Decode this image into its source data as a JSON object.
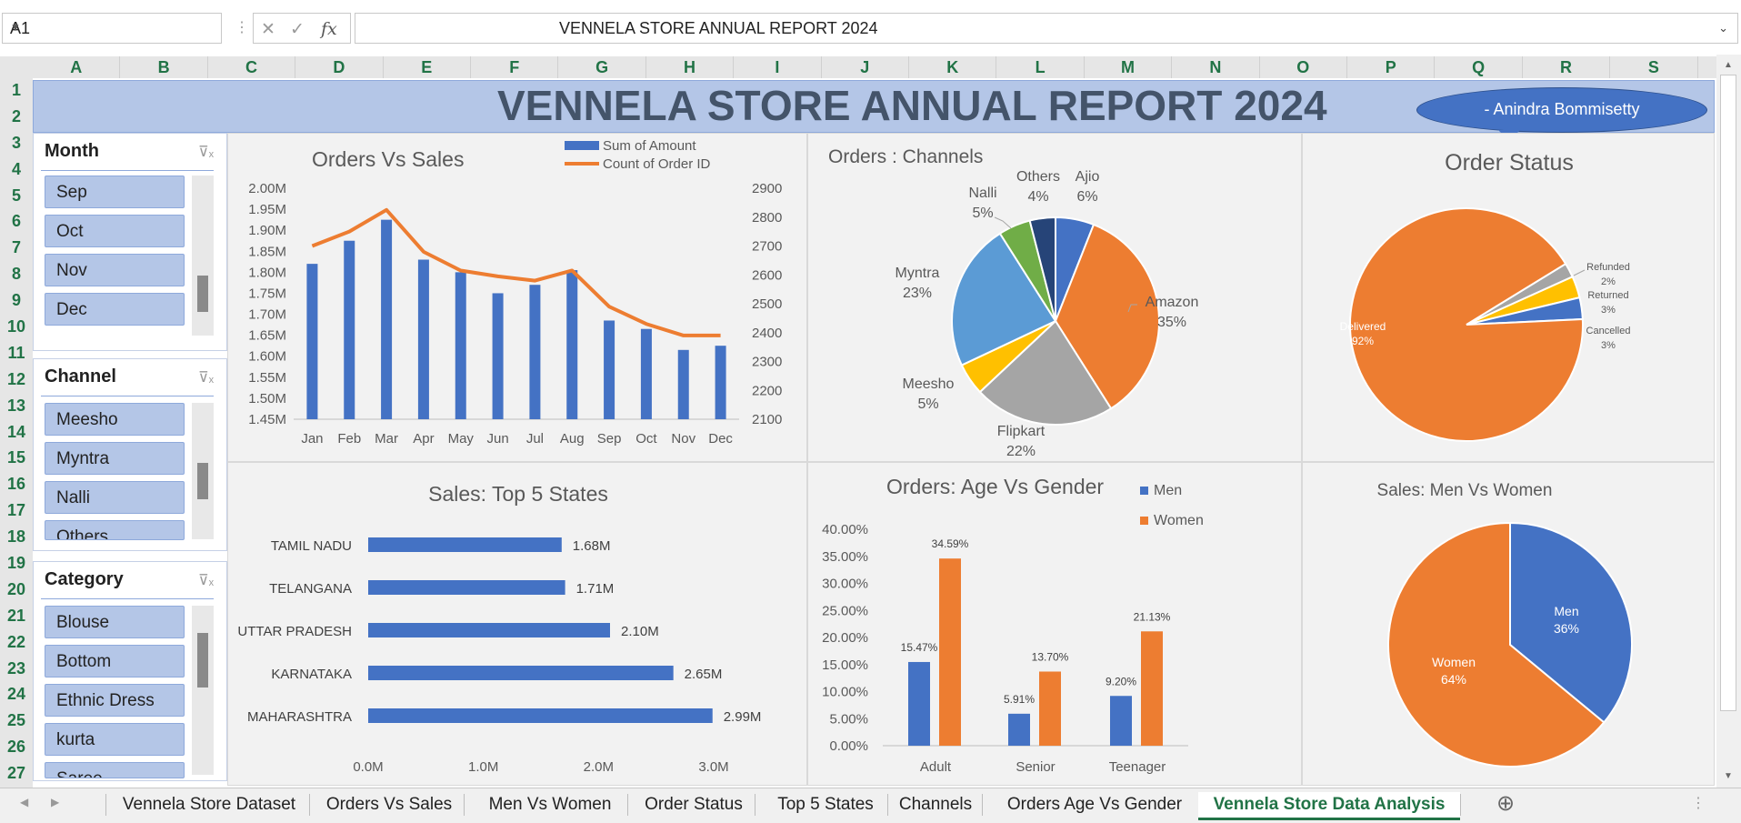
{
  "formula_bar": {
    "name_box": "A1",
    "formula": "VENNELA STORE ANNUAL REPORT 2024",
    "fx": "fx"
  },
  "columns": [
    "A",
    "B",
    "C",
    "D",
    "E",
    "F",
    "G",
    "H",
    "I",
    "J",
    "K",
    "L",
    "M",
    "N",
    "O",
    "P",
    "Q",
    "R",
    "S"
  ],
  "rows": [
    "1",
    "2",
    "3",
    "4",
    "5",
    "6",
    "7",
    "8",
    "9",
    "10",
    "11",
    "12",
    "13",
    "14",
    "15",
    "16",
    "17",
    "18",
    "19",
    "20",
    "21",
    "22",
    "23",
    "24",
    "25",
    "26",
    "27"
  ],
  "banner": {
    "title": "VENNELA STORE ANNUAL REPORT 2024",
    "author": "- Anindra Bommisetty"
  },
  "slicers": {
    "month": {
      "title": "Month",
      "items": [
        "Sep",
        "Oct",
        "Nov",
        "Dec"
      ]
    },
    "channel": {
      "title": "Channel",
      "items": [
        "Meesho",
        "Myntra",
        "Nalli",
        "Others"
      ]
    },
    "category": {
      "title": "Category",
      "items": [
        "Blouse",
        "Bottom",
        "Ethnic Dress",
        "kurta",
        "Saree"
      ]
    }
  },
  "tabs": [
    "Vennela Store Dataset",
    "Orders Vs Sales",
    "Men Vs Women",
    "Order Status",
    "Top 5 States",
    "Channels",
    "Orders Age Vs Gender",
    "Vennela Store Data Analysis"
  ],
  "active_tab": "Vennela Store Data Analysis",
  "colors": {
    "blue": "#4472c4",
    "orange": "#ed7d31",
    "gray": "#a5a5a5",
    "yellow": "#ffc000",
    "lightblue": "#5b9bd5",
    "green": "#70ad47",
    "navy": "#264478"
  },
  "chart_data": [
    {
      "type": "bar",
      "title": "Orders Vs Sales",
      "categories": [
        "Jan",
        "Feb",
        "Mar",
        "Apr",
        "May",
        "Jun",
        "Jul",
        "Aug",
        "Sep",
        "Oct",
        "Nov",
        "Dec"
      ],
      "series": [
        {
          "name": "Sum of Amount",
          "type": "bar",
          "axis": "left",
          "values": [
            1.82,
            1.875,
            1.925,
            1.83,
            1.8,
            1.75,
            1.77,
            1.805,
            1.685,
            1.665,
            1.615,
            1.625
          ]
        },
        {
          "name": "Count of Order ID",
          "type": "line",
          "axis": "right",
          "values": [
            2700,
            2750,
            2825,
            2680,
            2615,
            2595,
            2580,
            2615,
            2490,
            2430,
            2390,
            2390
          ]
        }
      ],
      "y_ticks": [
        "2.00M",
        "1.95M",
        "1.90M",
        "1.85M",
        "1.80M",
        "1.75M",
        "1.70M",
        "1.65M",
        "1.60M",
        "1.55M",
        "1.50M",
        "1.45M"
      ],
      "y2_ticks": [
        "2900",
        "2800",
        "2700",
        "2600",
        "2500",
        "2400",
        "2300",
        "2200",
        "2100"
      ],
      "ylim": [
        1.45,
        2.0
      ],
      "y2lim": [
        2100,
        2900
      ],
      "legend": "top-right"
    },
    {
      "type": "pie",
      "title": "Orders : Channels",
      "slices": [
        {
          "label": "Ajio",
          "value": 6,
          "pct": "6%",
          "color": "#4472c4"
        },
        {
          "label": "Amazon",
          "value": 35,
          "pct": "35%",
          "color": "#ed7d31"
        },
        {
          "label": "Flipkart",
          "value": 22,
          "pct": "22%",
          "color": "#a5a5a5"
        },
        {
          "label": "Meesho",
          "value": 5,
          "pct": "5%",
          "color": "#ffc000"
        },
        {
          "label": "Myntra",
          "value": 23,
          "pct": "23%",
          "color": "#5b9bd5"
        },
        {
          "label": "Nalli",
          "value": 5,
          "pct": "5%",
          "color": "#70ad47"
        },
        {
          "label": "Others",
          "value": 4,
          "pct": "4%",
          "color": "#264478"
        }
      ]
    },
    {
      "type": "pie",
      "title": "Order Status",
      "slices": [
        {
          "label": "Refunded",
          "value": 2,
          "pct": "2%",
          "color": "#a5a5a5"
        },
        {
          "label": "Returned",
          "value": 3,
          "pct": "3%",
          "color": "#ffc000"
        },
        {
          "label": "Cancelled",
          "value": 3,
          "pct": "3%",
          "color": "#4472c4"
        },
        {
          "label": "Delivered",
          "value": 92,
          "pct": "92%",
          "color": "#ed7d31"
        }
      ]
    },
    {
      "type": "bar",
      "orientation": "horizontal",
      "title": "Sales: Top 5 States",
      "categories": [
        "TAMIL NADU",
        "TELANGANA",
        "UTTAR PRADESH",
        "KARNATAKA",
        "MAHARASHTRA"
      ],
      "values": [
        1.68,
        1.71,
        2.1,
        2.65,
        2.99
      ],
      "labels": [
        "1.68M",
        "1.71M",
        "2.10M",
        "2.65M",
        "2.99M"
      ],
      "x_ticks": [
        "0.0M",
        "1.0M",
        "2.0M",
        "3.0M"
      ],
      "xlim": [
        0,
        3.0
      ]
    },
    {
      "type": "bar",
      "title": "Orders: Age Vs Gender",
      "categories": [
        "Adult",
        "Senior",
        "Teenager"
      ],
      "series": [
        {
          "name": "Men",
          "values": [
            15.47,
            5.91,
            9.2
          ],
          "labels": [
            "15.47%",
            "5.91%",
            "9.20%"
          ]
        },
        {
          "name": "Women",
          "values": [
            34.59,
            13.7,
            21.13
          ],
          "labels": [
            "34.59%",
            "13.70%",
            "21.13%"
          ]
        }
      ],
      "y_ticks": [
        "40.00%",
        "35.00%",
        "30.00%",
        "25.00%",
        "20.00%",
        "15.00%",
        "10.00%",
        "5.00%",
        "0.00%"
      ],
      "ylim": [
        0,
        40
      ],
      "legend": "top-right"
    },
    {
      "type": "pie",
      "title": "Sales: Men Vs Women",
      "slices": [
        {
          "label": "Men",
          "value": 36,
          "pct": "36%",
          "color": "#4472c4"
        },
        {
          "label": "Women",
          "value": 64,
          "pct": "64%",
          "color": "#ed7d31"
        }
      ]
    }
  ]
}
